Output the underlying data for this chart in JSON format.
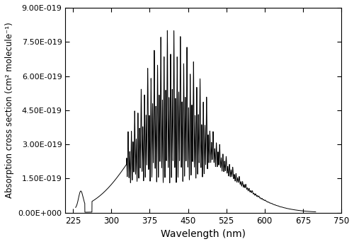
{
  "title": "",
  "xlabel": "Wavelength (nm)",
  "ylabel": "Absorption cross section (cm² molecule⁻¹)",
  "xlim": [
    210,
    750
  ],
  "ylim": [
    0.0,
    9e-19
  ],
  "xticks": [
    225,
    300,
    375,
    450,
    525,
    600,
    675,
    750
  ],
  "ytick_labels": [
    "0.00E+000",
    "1.50E-019",
    "3.00E-019",
    "4.50E-019",
    "6.00E-019",
    "7.50E-019",
    "9.00E-019"
  ],
  "ytick_values": [
    0.0,
    1.5e-19,
    3e-19,
    4.5e-19,
    6e-19,
    7.5e-19,
    9e-19
  ],
  "line_color": "#000000",
  "line_width": 0.7,
  "background_color": "#ffffff",
  "figsize": [
    5.0,
    3.45
  ],
  "dpi": 100
}
